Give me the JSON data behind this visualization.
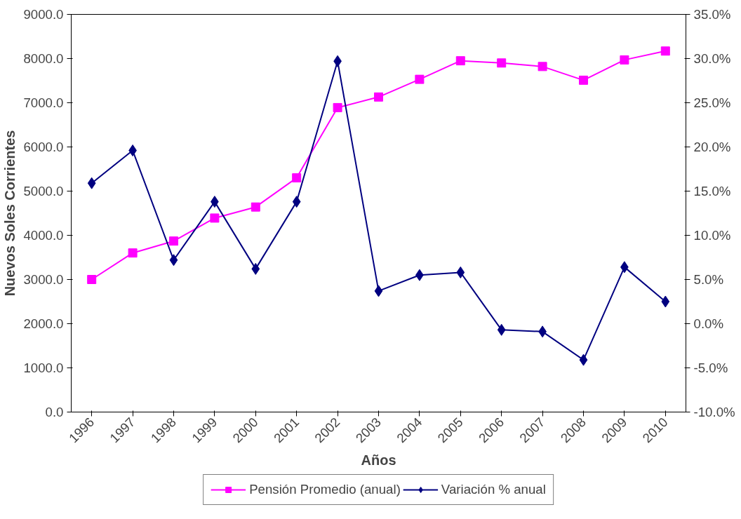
{
  "chart_data": {
    "type": "line",
    "xlabel": "Años",
    "ylabel": "Nuevos Soles Corrientes",
    "categories": [
      "1996",
      "1997",
      "1998",
      "1999",
      "2000",
      "2001",
      "2002",
      "2003",
      "2004",
      "2005",
      "2006",
      "2007",
      "2008",
      "2009",
      "2010"
    ],
    "series": [
      {
        "name": "Pensión Promedio (anual)",
        "color": "#ff00ff",
        "marker": "square",
        "values": [
          3000,
          3600,
          3870,
          4390,
          4640,
          5300,
          6890,
          7130,
          7530,
          7950,
          7900,
          7820,
          7510,
          7970,
          8170
        ]
      },
      {
        "name": "Variación % anual",
        "color": "#000080",
        "marker": "diamond",
        "axis": "y2",
        "values": [
          15.9,
          19.6,
          7.2,
          13.8,
          6.2,
          13.8,
          29.7,
          3.7,
          5.5,
          5.8,
          -0.7,
          -0.9,
          -4.1,
          6.4,
          2.5
        ]
      }
    ],
    "ylim": [
      0,
      9000
    ],
    "yticks": [
      {
        "value": 0,
        "label": "0.0"
      },
      {
        "value": 1000,
        "label": "1000.0"
      },
      {
        "value": 2000,
        "label": "2000.0"
      },
      {
        "value": 3000,
        "label": "3000.0"
      },
      {
        "value": 4000,
        "label": "4000.0"
      },
      {
        "value": 5000,
        "label": "5000.0"
      },
      {
        "value": 6000,
        "label": "6000.0"
      },
      {
        "value": 7000,
        "label": "7000.0"
      },
      {
        "value": 8000,
        "label": "8000.0"
      },
      {
        "value": 9000,
        "label": "9000.0"
      }
    ],
    "y2lim": [
      -10,
      35
    ],
    "y2ticks": [
      {
        "value": -10,
        "label": "-10.0%"
      },
      {
        "value": -5,
        "label": "-5.0%"
      },
      {
        "value": 0,
        "label": "0.0%"
      },
      {
        "value": 5,
        "label": "5.0%"
      },
      {
        "value": 10,
        "label": "10.0%"
      },
      {
        "value": 15,
        "label": "15.0%"
      },
      {
        "value": 20,
        "label": "20.0%"
      },
      {
        "value": 25,
        "label": "25.0%"
      },
      {
        "value": 30,
        "label": "30.0%"
      },
      {
        "value": 35,
        "label": "35.0%"
      }
    ],
    "grid": false,
    "legend": "bottom",
    "line_style": "solid"
  }
}
